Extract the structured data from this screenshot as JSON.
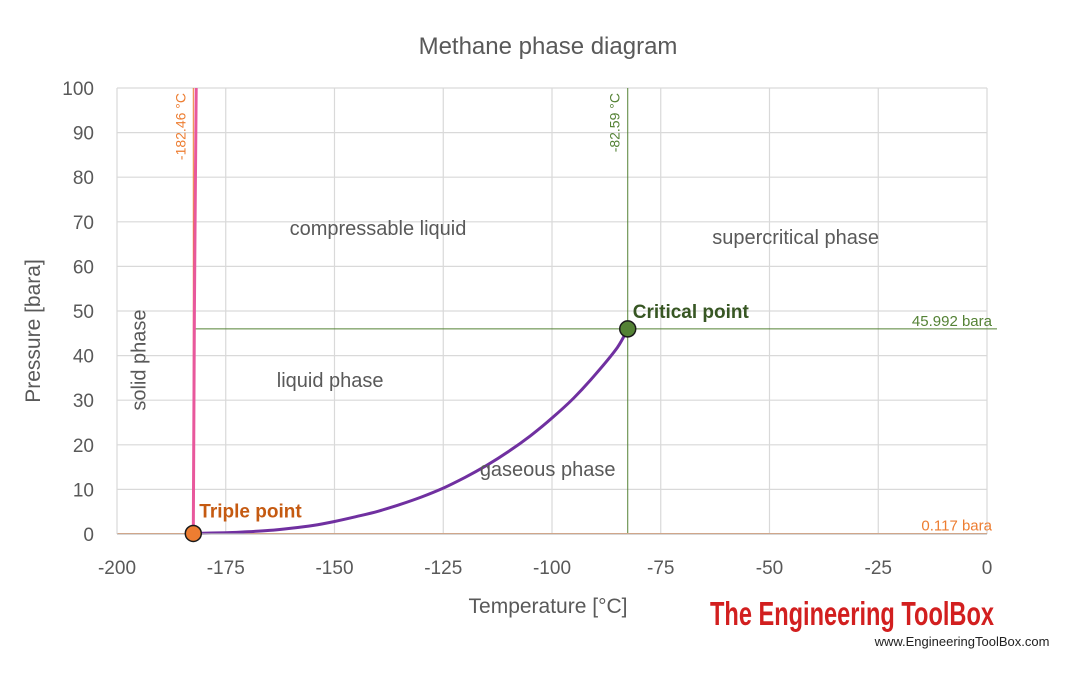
{
  "chart_data": {
    "type": "line",
    "title": "Methane phase diagram",
    "xlabel": "Temperature [°C]",
    "ylabel": "Pressure [bara]",
    "xlim": [
      -200,
      0
    ],
    "ylim": [
      0,
      100
    ],
    "x_ticks": [
      "-200",
      "-175",
      "-150",
      "-125",
      "-100",
      "-75",
      "-50",
      "-25",
      "0"
    ],
    "y_ticks": [
      "0",
      "10",
      "20",
      "30",
      "40",
      "50",
      "60",
      "70",
      "80",
      "90",
      "100"
    ],
    "grid": true,
    "series": [
      {
        "name": "",
        "color": "#7030a0",
        "x": [
          -182.46,
          -175,
          -170,
          -165,
          -160,
          -155,
          -150,
          -145,
          -140,
          -135,
          -130,
          -125,
          -120,
          -115,
          -110,
          -105,
          -100,
          -95,
          -90,
          -85,
          -82.59
        ],
        "y": [
          0.117,
          0.3,
          0.5,
          0.8,
          1.3,
          1.9,
          2.8,
          3.9,
          5.1,
          6.6,
          8.3,
          10.3,
          12.7,
          15.4,
          18.5,
          22.0,
          26.0,
          30.5,
          35.8,
          41.8,
          45.992
        ]
      },
      {
        "name": "",
        "color": "#e8589c",
        "x": [
          -182.46,
          -182.2,
          -181.8
        ],
        "y": [
          0.117,
          50,
          100
        ]
      }
    ],
    "reference_lines": [
      {
        "axis": "x",
        "value": -182.46,
        "label": "-182.46 °C",
        "color": "#ed7d31"
      },
      {
        "axis": "x",
        "value": -82.59,
        "label": "-82.59 °C",
        "color": "#548235"
      },
      {
        "axis": "y",
        "value": 45.992,
        "label": "45.992 bara",
        "color": "#548235"
      },
      {
        "axis": "y",
        "value": 0.117,
        "label": "0.117 bara",
        "color": "#ed7d31"
      }
    ],
    "points": [
      {
        "x": -182.46,
        "y": 0.117,
        "label": "Triple point",
        "color": "#ed7d31",
        "label_color": "#c55a11"
      },
      {
        "x": -82.59,
        "y": 45.992,
        "label": "Critical point",
        "color": "#548235",
        "label_color": "#375623"
      }
    ],
    "annotations": [
      {
        "text": "compressable liquid",
        "x": -140,
        "y": 67
      },
      {
        "text": "supercritical phase",
        "x": -44,
        "y": 65
      },
      {
        "text": "liquid phase",
        "x": -151,
        "y": 33
      },
      {
        "text": "gaseous phase",
        "x": -101,
        "y": 13
      },
      {
        "text": "solid phase",
        "x": -193.5,
        "y": 39,
        "rotated": true
      }
    ]
  },
  "branding": {
    "name": "The Engineering ToolBox",
    "url": "www.EngineeringToolBox.com"
  }
}
